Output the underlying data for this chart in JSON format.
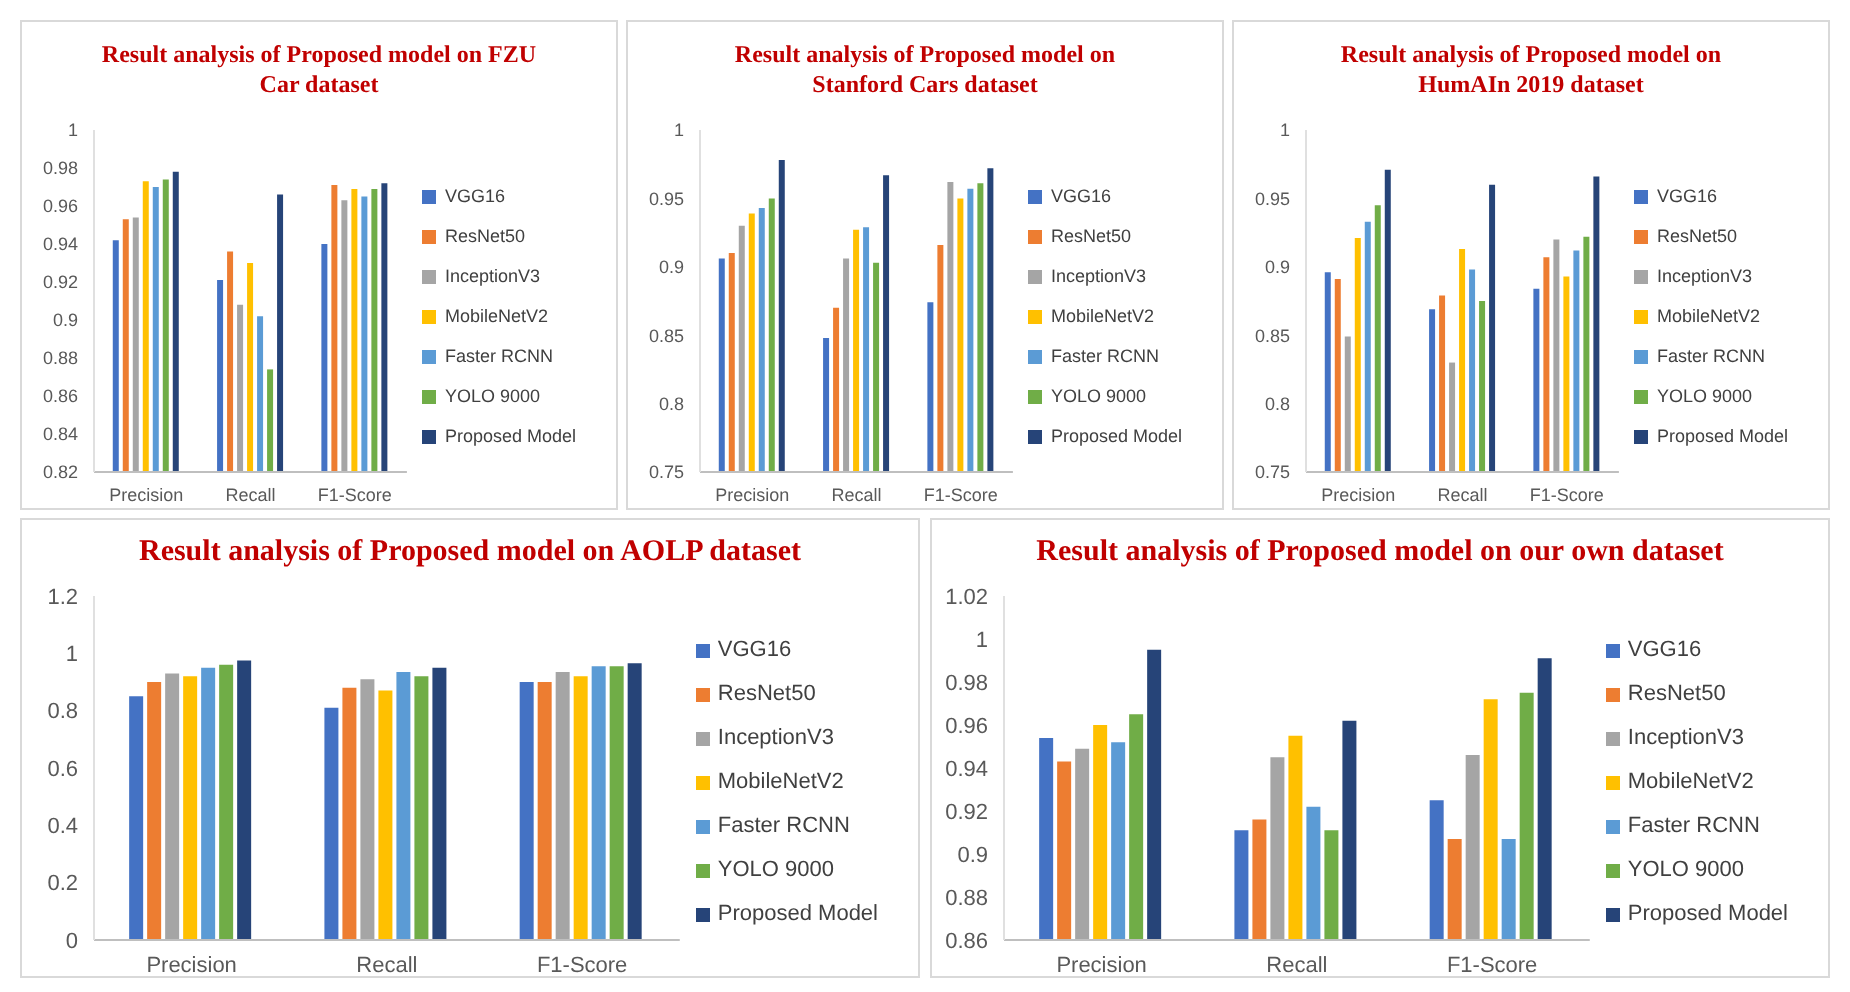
{
  "chart_data": [
    {
      "type": "bar",
      "title": "Result analysis of Proposed model on FZU Car dataset",
      "categories": [
        "Precision",
        "Recall",
        "F1-Score"
      ],
      "ylim": [
        0.82,
        1
      ],
      "yticks": [
        0.82,
        0.84,
        0.86,
        0.88,
        0.9,
        0.92,
        0.94,
        0.96,
        0.98,
        1
      ],
      "grid": false,
      "legend": "right",
      "series": [
        {
          "name": "VGG16",
          "color": "#4472c4",
          "values": [
            0.942,
            0.921,
            0.94
          ]
        },
        {
          "name": "ResNet50",
          "color": "#ed7d31",
          "values": [
            0.953,
            0.936,
            0.971
          ]
        },
        {
          "name": "InceptionV3",
          "color": "#a5a5a5",
          "values": [
            0.954,
            0.908,
            0.963
          ]
        },
        {
          "name": "MobileNetV2",
          "color": "#ffc000",
          "values": [
            0.973,
            0.93,
            0.969
          ]
        },
        {
          "name": "Faster RCNN",
          "color": "#5b9bd5",
          "values": [
            0.97,
            0.902,
            0.965
          ]
        },
        {
          "name": "YOLO 9000",
          "color": "#70ad47",
          "values": [
            0.974,
            0.874,
            0.969
          ]
        },
        {
          "name": "Proposed Model",
          "color": "#264478",
          "values": [
            0.978,
            0.966,
            0.972
          ]
        }
      ]
    },
    {
      "type": "bar",
      "title": "Result analysis of Proposed model on Stanford Cars dataset",
      "categories": [
        "Precision",
        "Recall",
        "F1-Score"
      ],
      "ylim": [
        0.75,
        1
      ],
      "yticks": [
        0.75,
        0.8,
        0.85,
        0.9,
        0.95,
        1
      ],
      "grid": false,
      "legend": "right",
      "series": [
        {
          "name": "VGG16",
          "color": "#4472c4",
          "values": [
            0.906,
            0.848,
            0.874
          ]
        },
        {
          "name": "ResNet50",
          "color": "#ed7d31",
          "values": [
            0.91,
            0.87,
            0.916
          ]
        },
        {
          "name": "InceptionV3",
          "color": "#a5a5a5",
          "values": [
            0.93,
            0.906,
            0.962
          ]
        },
        {
          "name": "MobileNetV2",
          "color": "#ffc000",
          "values": [
            0.939,
            0.927,
            0.95
          ]
        },
        {
          "name": "Faster RCNN",
          "color": "#5b9bd5",
          "values": [
            0.943,
            0.929,
            0.957
          ]
        },
        {
          "name": "YOLO 9000",
          "color": "#70ad47",
          "values": [
            0.95,
            0.903,
            0.961
          ]
        },
        {
          "name": "Proposed Model",
          "color": "#264478",
          "values": [
            0.978,
            0.967,
            0.972
          ]
        }
      ]
    },
    {
      "type": "bar",
      "title": "Result analysis of Proposed model on HumAIn 2019 dataset",
      "categories": [
        "Precision",
        "Recall",
        "F1-Score"
      ],
      "ylim": [
        0.75,
        1
      ],
      "yticks": [
        0.75,
        0.8,
        0.85,
        0.9,
        0.95,
        1
      ],
      "grid": false,
      "legend": "right",
      "series": [
        {
          "name": "VGG16",
          "color": "#4472c4",
          "values": [
            0.896,
            0.869,
            0.884
          ]
        },
        {
          "name": "ResNet50",
          "color": "#ed7d31",
          "values": [
            0.891,
            0.879,
            0.907
          ]
        },
        {
          "name": "InceptionV3",
          "color": "#a5a5a5",
          "values": [
            0.849,
            0.83,
            0.92
          ]
        },
        {
          "name": "MobileNetV2",
          "color": "#ffc000",
          "values": [
            0.921,
            0.913,
            0.893
          ]
        },
        {
          "name": "Faster RCNN",
          "color": "#5b9bd5",
          "values": [
            0.933,
            0.898,
            0.912
          ]
        },
        {
          "name": "YOLO 9000",
          "color": "#70ad47",
          "values": [
            0.945,
            0.875,
            0.922
          ]
        },
        {
          "name": "Proposed Model",
          "color": "#264478",
          "values": [
            0.971,
            0.96,
            0.966
          ]
        }
      ]
    },
    {
      "type": "bar",
      "title": "Result analysis of Proposed model on AOLP dataset",
      "categories": [
        "Precision",
        "Recall",
        "F1-Score"
      ],
      "ylim": [
        0,
        1.2
      ],
      "yticks": [
        0,
        0.2,
        0.4,
        0.6,
        0.8,
        1,
        1.2
      ],
      "grid": false,
      "legend": "right",
      "series": [
        {
          "name": "VGG16",
          "color": "#4472c4",
          "values": [
            0.85,
            0.81,
            0.9
          ]
        },
        {
          "name": "ResNet50",
          "color": "#ed7d31",
          "values": [
            0.9,
            0.88,
            0.9
          ]
        },
        {
          "name": "InceptionV3",
          "color": "#a5a5a5",
          "values": [
            0.93,
            0.91,
            0.935
          ]
        },
        {
          "name": "MobileNetV2",
          "color": "#ffc000",
          "values": [
            0.92,
            0.87,
            0.92
          ]
        },
        {
          "name": "Faster RCNN",
          "color": "#5b9bd5",
          "values": [
            0.95,
            0.935,
            0.955
          ]
        },
        {
          "name": "YOLO 9000",
          "color": "#70ad47",
          "values": [
            0.96,
            0.92,
            0.955
          ]
        },
        {
          "name": "Proposed Model",
          "color": "#264478",
          "values": [
            0.975,
            0.95,
            0.965
          ]
        }
      ]
    },
    {
      "type": "bar",
      "title": "Result analysis of Proposed model on our own dataset",
      "categories": [
        "Precision",
        "Recall",
        "F1-Score"
      ],
      "ylim": [
        0.86,
        1.02
      ],
      "yticks": [
        0.86,
        0.88,
        0.9,
        0.92,
        0.94,
        0.96,
        0.98,
        1,
        1.02
      ],
      "grid": false,
      "legend": "right",
      "series": [
        {
          "name": "VGG16",
          "color": "#4472c4",
          "values": [
            0.954,
            0.911,
            0.925
          ]
        },
        {
          "name": "ResNet50",
          "color": "#ed7d31",
          "values": [
            0.943,
            0.916,
            0.907
          ]
        },
        {
          "name": "InceptionV3",
          "color": "#a5a5a5",
          "values": [
            0.949,
            0.945,
            0.946
          ]
        },
        {
          "name": "MobileNetV2",
          "color": "#ffc000",
          "values": [
            0.96,
            0.955,
            0.972
          ]
        },
        {
          "name": "Faster RCNN",
          "color": "#5b9bd5",
          "values": [
            0.952,
            0.922,
            0.907
          ]
        },
        {
          "name": "YOLO 9000",
          "color": "#70ad47",
          "values": [
            0.965,
            0.911,
            0.975
          ]
        },
        {
          "name": "Proposed Model",
          "color": "#264478",
          "values": [
            0.995,
            0.962,
            0.991
          ]
        }
      ]
    }
  ]
}
